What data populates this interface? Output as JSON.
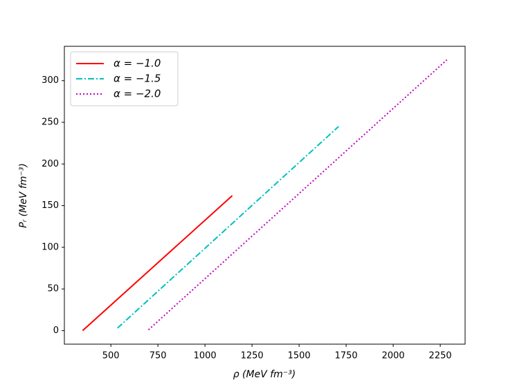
{
  "chart_data": {
    "type": "line",
    "x_label": "ρ (MeV fm⁻³)",
    "y_label": "Pᵣ (MeV fm⁻³)",
    "xlim": [
      253,
      2382
    ],
    "ylim": [
      -16.25,
      341.25
    ],
    "xticks": [
      500,
      750,
      1000,
      1250,
      1500,
      1750,
      2000,
      2250
    ],
    "yticks": [
      0,
      50,
      100,
      150,
      200,
      250,
      300
    ],
    "grid": false,
    "legend": "upper left",
    "series": [
      {
        "name": "α = −1.0",
        "color": "#ff0000",
        "linestyle": "solid",
        "x": [
          350,
          1145
        ],
        "values": [
          0,
          162
        ]
      },
      {
        "name": "α = −1.5",
        "color": "#00bfbf",
        "linestyle": "dashdot",
        "x": [
          535,
          1710
        ],
        "values": [
          3,
          245
        ]
      },
      {
        "name": "α = −2.0",
        "color": "#bf00bf",
        "linestyle": "dotted",
        "x": [
          700,
          2285
        ],
        "values": [
          1,
          325
        ]
      }
    ]
  }
}
